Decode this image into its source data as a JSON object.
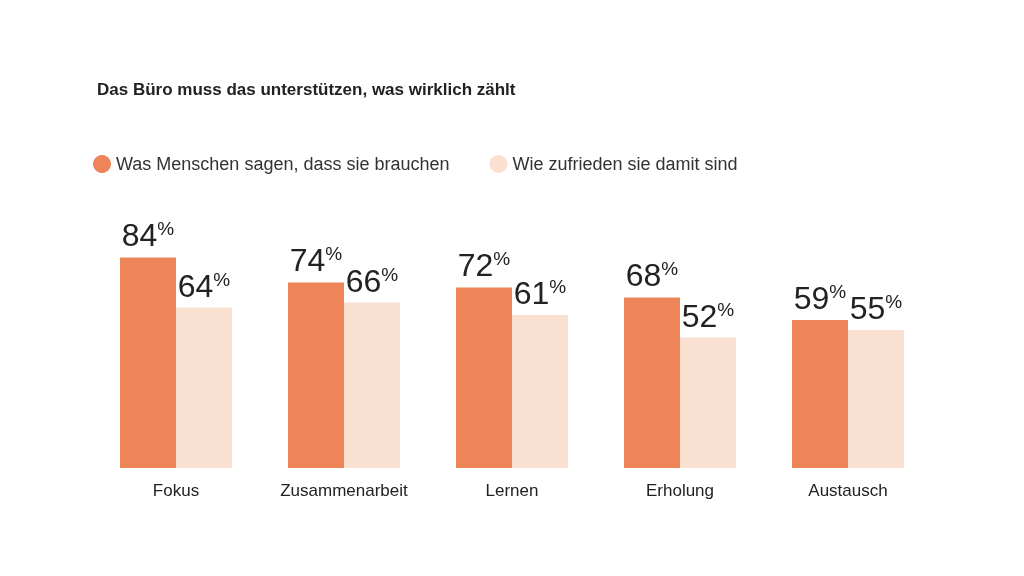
{
  "chart_data": {
    "type": "bar",
    "title": "Das Büro muss das unterstützen, was wirklich zählt",
    "categories": [
      "Fokus",
      "Zusammenarbeit",
      "Lernen",
      "Erholung",
      "Austausch"
    ],
    "series": [
      {
        "name": "Was Menschen sagen, dass sie brauchen",
        "color": "#ee8558",
        "values": [
          84,
          74,
          72,
          68,
          59
        ],
        "value_labels": [
          "84%",
          "74%",
          "72%",
          "68%",
          "59%"
        ]
      },
      {
        "name": "Wie zufrieden sie damit sind",
        "color": "#fae0d0",
        "values": [
          64,
          66,
          61,
          52,
          55
        ],
        "value_labels": [
          "64%",
          "66%",
          "61%",
          "52%",
          "55%"
        ]
      }
    ],
    "legend": "top left",
    "grid": false
  }
}
